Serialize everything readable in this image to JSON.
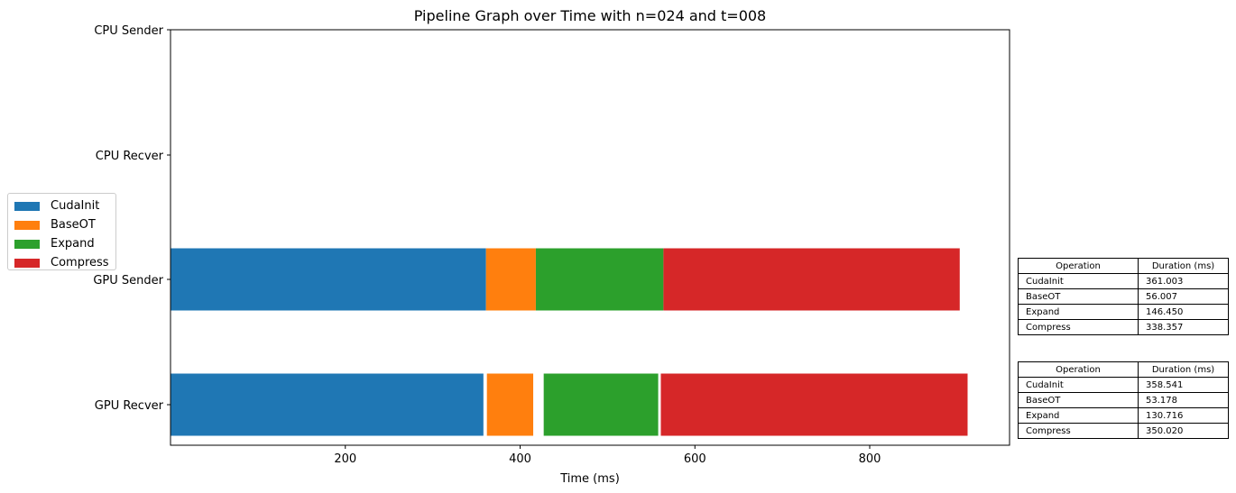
{
  "chart_data": {
    "type": "bar",
    "orientation": "horizontal-gantt",
    "title": "Pipeline Graph over Time with n=024 and t=008",
    "xlabel": "Time (ms)",
    "ylabel": "",
    "xlim": [
      0,
      960
    ],
    "xticks": [
      200,
      400,
      600,
      800
    ],
    "categories": [
      "CPU Sender",
      "CPU Recver",
      "GPU Sender",
      "GPU Recver"
    ],
    "grid": false,
    "legend_position": "center-left",
    "legend": [
      "CudaInit",
      "BaseOT",
      "Expand",
      "Compress"
    ],
    "colors": {
      "CudaInit": "#1f77b4",
      "BaseOT": "#ff7f0e",
      "Expand": "#2ca02c",
      "Compress": "#d62728"
    },
    "series": [
      {
        "lane": "GPU Sender",
        "segments": [
          {
            "op": "CudaInit",
            "start": 0,
            "end": 361
          },
          {
            "op": "BaseOT",
            "start": 361,
            "end": 418
          },
          {
            "op": "Expand",
            "start": 418,
            "end": 564
          },
          {
            "op": "Compress",
            "start": 564,
            "end": 903
          }
        ]
      },
      {
        "lane": "GPU Recver",
        "segments": [
          {
            "op": "CudaInit",
            "start": 0,
            "end": 358
          },
          {
            "op": "BaseOT",
            "start": 362,
            "end": 415
          },
          {
            "op": "Expand",
            "start": 427,
            "end": 558
          },
          {
            "op": "Compress",
            "start": 561,
            "end": 912
          }
        ]
      }
    ]
  },
  "tables": [
    {
      "headers": [
        "Operation",
        "Duration (ms)"
      ],
      "rows": [
        [
          "CudaInit",
          "361.003"
        ],
        [
          "BaseOT",
          "56.007"
        ],
        [
          "Expand",
          "146.450"
        ],
        [
          "Compress",
          "338.357"
        ]
      ]
    },
    {
      "headers": [
        "Operation",
        "Duration (ms)"
      ],
      "rows": [
        [
          "CudaInit",
          "358.541"
        ],
        [
          "BaseOT",
          "53.178"
        ],
        [
          "Expand",
          "130.716"
        ],
        [
          "Compress",
          "350.020"
        ]
      ]
    }
  ]
}
